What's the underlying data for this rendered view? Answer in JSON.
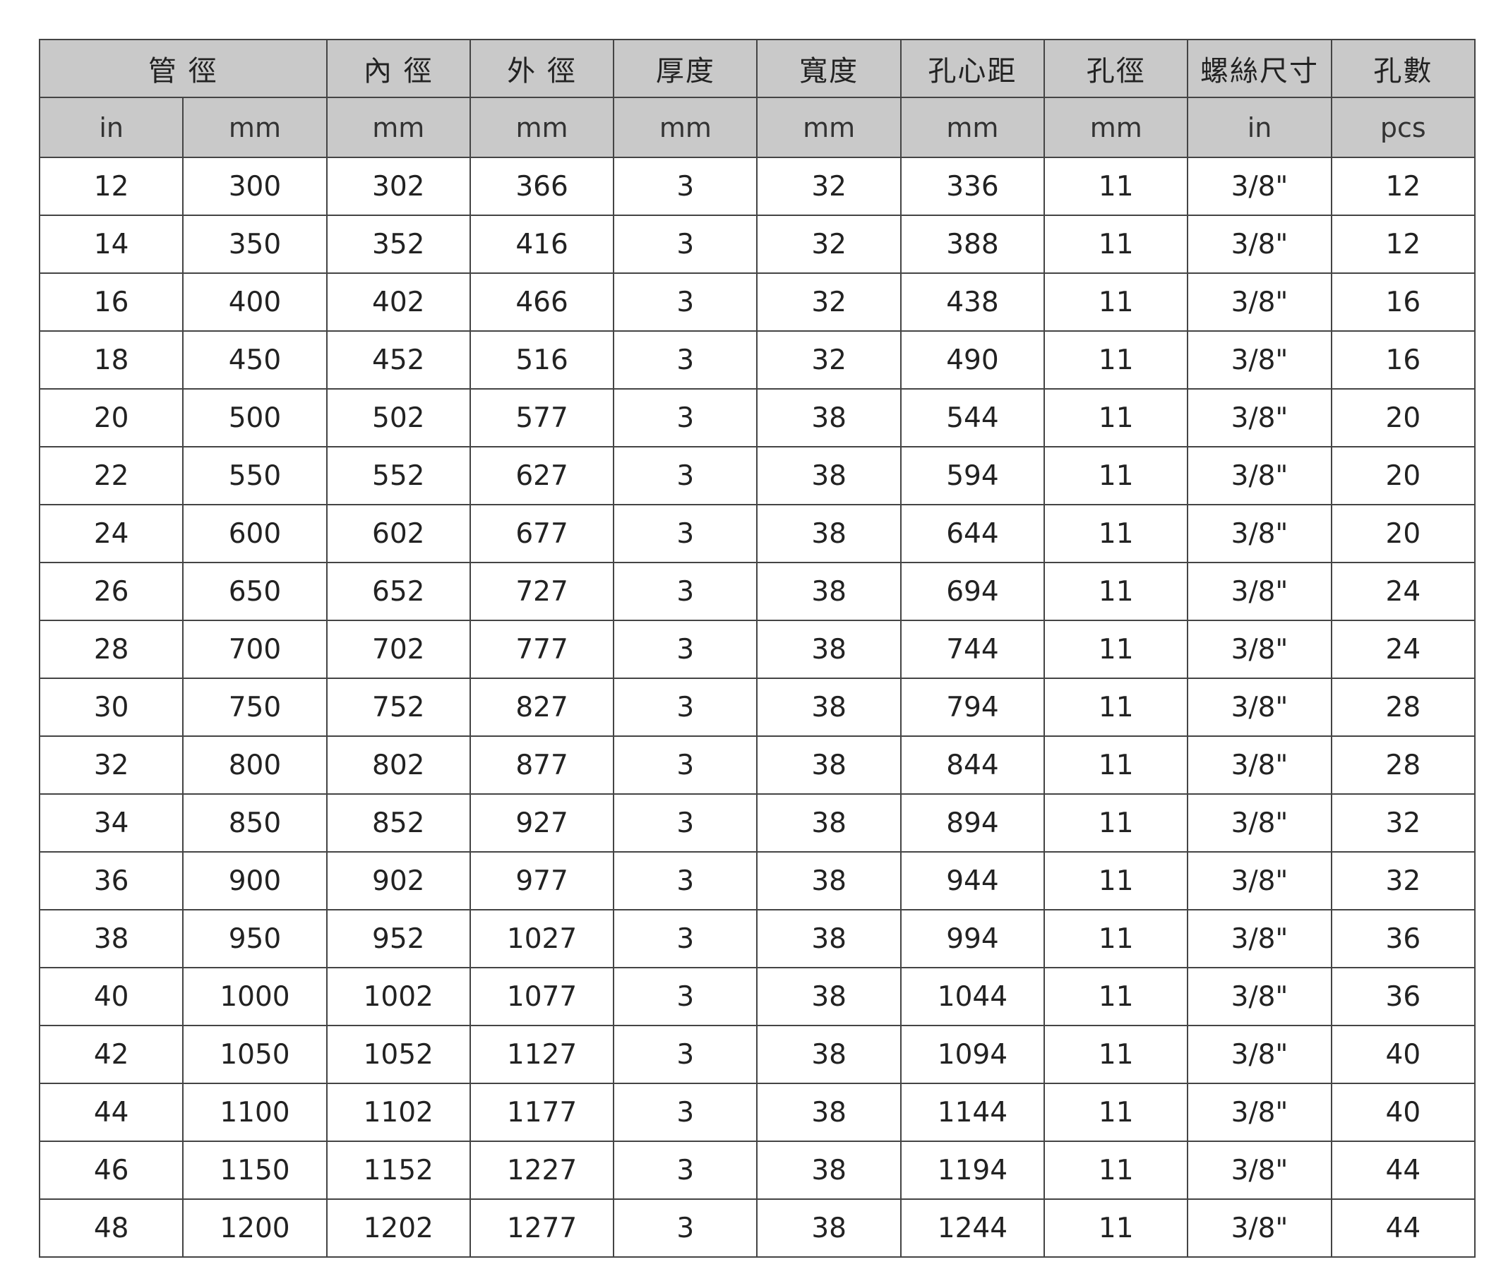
{
  "header": {
    "groups": [
      "管 徑",
      "內 徑",
      "外 徑",
      "厚度",
      "寬度",
      "孔心距",
      "孔徑",
      "螺絲尺寸",
      "孔數"
    ],
    "units": [
      "in",
      "mm",
      "mm",
      "mm",
      "mm",
      "mm",
      "mm",
      "mm",
      "in",
      "pcs"
    ]
  },
  "rows": [
    [
      "12",
      "300",
      "302",
      "366",
      "3",
      "32",
      "336",
      "11",
      "3/8\"",
      "12"
    ],
    [
      "14",
      "350",
      "352",
      "416",
      "3",
      "32",
      "388",
      "11",
      "3/8\"",
      "12"
    ],
    [
      "16",
      "400",
      "402",
      "466",
      "3",
      "32",
      "438",
      "11",
      "3/8\"",
      "16"
    ],
    [
      "18",
      "450",
      "452",
      "516",
      "3",
      "32",
      "490",
      "11",
      "3/8\"",
      "16"
    ],
    [
      "20",
      "500",
      "502",
      "577",
      "3",
      "38",
      "544",
      "11",
      "3/8\"",
      "20"
    ],
    [
      "22",
      "550",
      "552",
      "627",
      "3",
      "38",
      "594",
      "11",
      "3/8\"",
      "20"
    ],
    [
      "24",
      "600",
      "602",
      "677",
      "3",
      "38",
      "644",
      "11",
      "3/8\"",
      "20"
    ],
    [
      "26",
      "650",
      "652",
      "727",
      "3",
      "38",
      "694",
      "11",
      "3/8\"",
      "24"
    ],
    [
      "28",
      "700",
      "702",
      "777",
      "3",
      "38",
      "744",
      "11",
      "3/8\"",
      "24"
    ],
    [
      "30",
      "750",
      "752",
      "827",
      "3",
      "38",
      "794",
      "11",
      "3/8\"",
      "28"
    ],
    [
      "32",
      "800",
      "802",
      "877",
      "3",
      "38",
      "844",
      "11",
      "3/8\"",
      "28"
    ],
    [
      "34",
      "850",
      "852",
      "927",
      "3",
      "38",
      "894",
      "11",
      "3/8\"",
      "32"
    ],
    [
      "36",
      "900",
      "902",
      "977",
      "3",
      "38",
      "944",
      "11",
      "3/8\"",
      "32"
    ],
    [
      "38",
      "950",
      "952",
      "1027",
      "3",
      "38",
      "994",
      "11",
      "3/8\"",
      "36"
    ],
    [
      "40",
      "1000",
      "1002",
      "1077",
      "3",
      "38",
      "1044",
      "11",
      "3/8\"",
      "36"
    ],
    [
      "42",
      "1050",
      "1052",
      "1127",
      "3",
      "38",
      "1094",
      "11",
      "3/8\"",
      "40"
    ],
    [
      "44",
      "1100",
      "1102",
      "1177",
      "3",
      "38",
      "1144",
      "11",
      "3/8\"",
      "40"
    ],
    [
      "46",
      "1150",
      "1152",
      "1227",
      "3",
      "38",
      "1194",
      "11",
      "3/8\"",
      "44"
    ],
    [
      "48",
      "1200",
      "1202",
      "1277",
      "3",
      "38",
      "1244",
      "11",
      "3/8\"",
      "44"
    ]
  ]
}
